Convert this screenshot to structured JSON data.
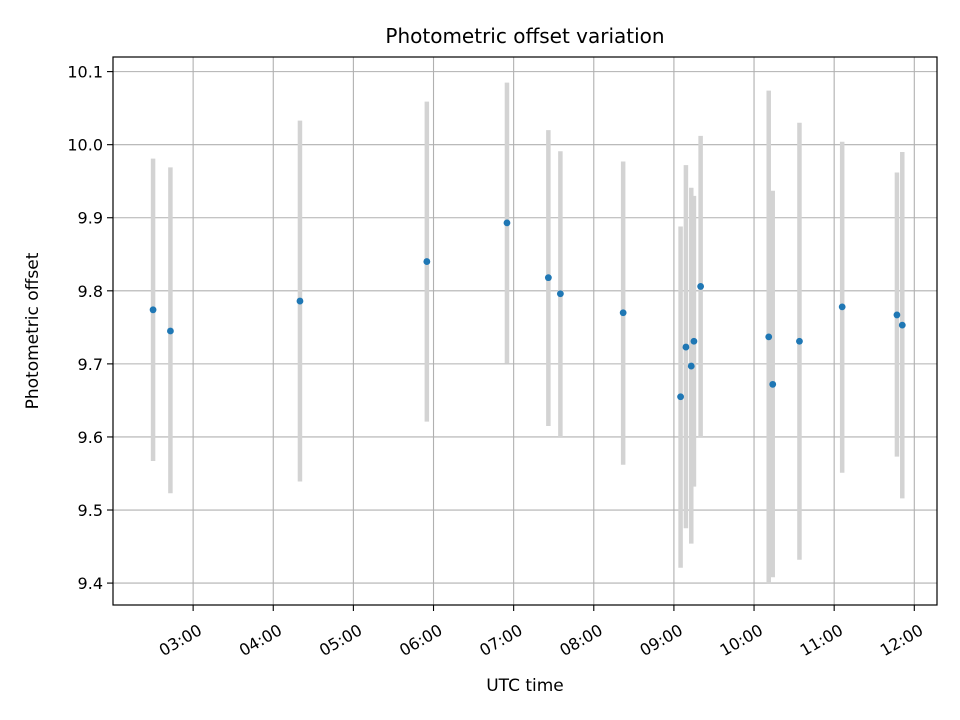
{
  "chart_data": {
    "type": "scatter",
    "title": "Photometric offset variation",
    "xlabel": "UTC time",
    "ylabel": "Photometric offset",
    "x_tick_labels": [
      "03:00",
      "04:00",
      "05:00",
      "06:00",
      "07:00",
      "08:00",
      "09:00",
      "10:00",
      "11:00",
      "12:00"
    ],
    "y_tick_labels": [
      "9.4",
      "9.5",
      "9.6",
      "9.7",
      "9.8",
      "9.9",
      "10.0",
      "10.1"
    ],
    "xlim": [
      "02:00",
      "12:17"
    ],
    "ylim": [
      9.37,
      10.12
    ],
    "grid": true,
    "marker_color": "#1f77b4",
    "errorbar_color": "#d3d3d3",
    "points": [
      {
        "time": "02:30",
        "value": 9.774,
        "low": 9.567,
        "high": 9.981
      },
      {
        "time": "02:43",
        "value": 9.745,
        "low": 9.523,
        "high": 9.969
      },
      {
        "time": "04:20",
        "value": 9.786,
        "low": 9.539,
        "high": 10.033
      },
      {
        "time": "05:55",
        "value": 9.84,
        "low": 9.621,
        "high": 10.059
      },
      {
        "time": "06:55",
        "value": 9.893,
        "low": 9.701,
        "high": 10.085
      },
      {
        "time": "07:26",
        "value": 9.818,
        "low": 9.615,
        "high": 10.02
      },
      {
        "time": "07:35",
        "value": 9.796,
        "low": 9.6,
        "high": 9.991
      },
      {
        "time": "08:22",
        "value": 9.77,
        "low": 9.562,
        "high": 9.977
      },
      {
        "time": "09:05",
        "value": 9.655,
        "low": 9.421,
        "high": 9.888
      },
      {
        "time": "09:09",
        "value": 9.723,
        "low": 9.475,
        "high": 9.972
      },
      {
        "time": "09:13",
        "value": 9.697,
        "low": 9.454,
        "high": 9.941
      },
      {
        "time": "09:15",
        "value": 9.731,
        "low": 9.532,
        "high": 9.93
      },
      {
        "time": "09:20",
        "value": 9.806,
        "low": 9.6,
        "high": 10.012
      },
      {
        "time": "10:11",
        "value": 9.737,
        "low": 9.4,
        "high": 10.074
      },
      {
        "time": "10:14",
        "value": 9.672,
        "low": 9.408,
        "high": 9.937
      },
      {
        "time": "10:34",
        "value": 9.731,
        "low": 9.432,
        "high": 10.03
      },
      {
        "time": "11:06",
        "value": 9.778,
        "low": 9.551,
        "high": 10.004
      },
      {
        "time": "11:47",
        "value": 9.767,
        "low": 9.573,
        "high": 9.962
      },
      {
        "time": "11:51",
        "value": 9.753,
        "low": 9.516,
        "high": 9.99
      }
    ]
  }
}
